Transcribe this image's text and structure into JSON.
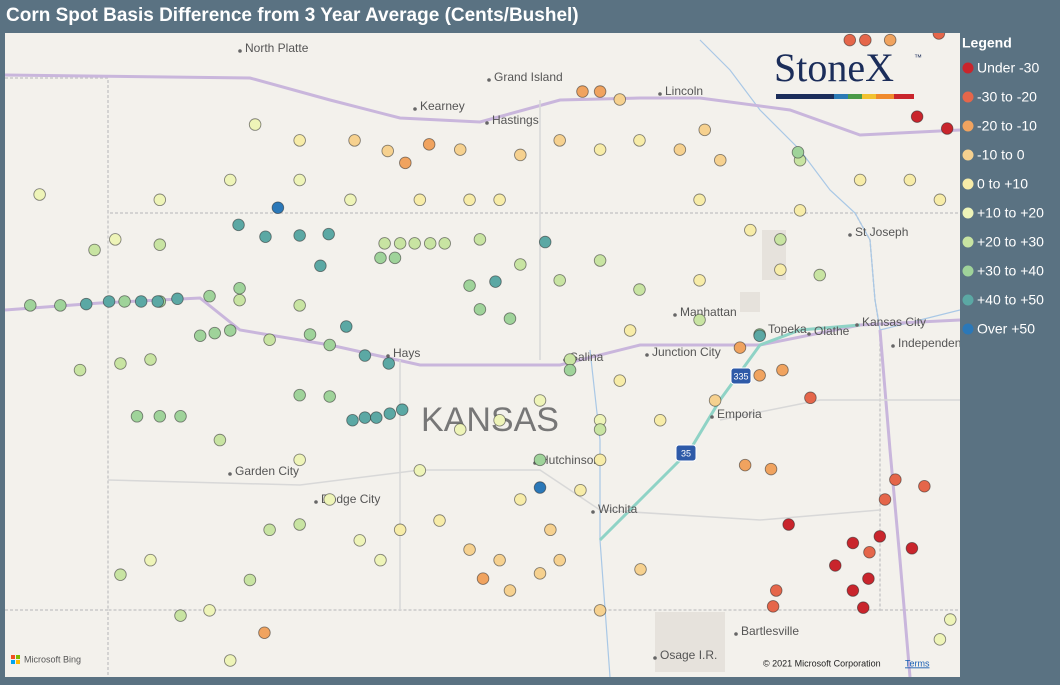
{
  "header": {
    "title": "Corn Spot Basis Difference from 3 Year Average (Cents/Bushel)"
  },
  "legend": {
    "title": "Legend",
    "items": [
      {
        "label": "Under -30",
        "color": "#c9252c",
        "points": [
          [
            -94.86,
            37.14
          ],
          [
            -94.76,
            37.01
          ],
          [
            -95.03,
            37.33
          ],
          [
            -94.71,
            37.23
          ],
          [
            -94.29,
            37.46
          ],
          [
            -94.24,
            40.73
          ],
          [
            -93.95,
            40.64
          ],
          [
            -95.48,
            37.64
          ],
          [
            -94.86,
            37.5
          ],
          [
            -94.6,
            37.55
          ]
        ]
      },
      {
        "label": "-30 to -20",
        "color": "#e5664a",
        "points": [
          [
            -94.55,
            37.83
          ],
          [
            -94.45,
            37.98
          ],
          [
            -94.17,
            37.93
          ],
          [
            -94.7,
            37.43
          ],
          [
            -95.63,
            37.02
          ],
          [
            -95.6,
            37.14
          ],
          [
            -95.27,
            38.6
          ],
          [
            -94.89,
            41.31
          ],
          [
            -94.74,
            41.31
          ],
          [
            -94.03,
            41.36
          ]
        ]
      },
      {
        "label": "-20 to -10",
        "color": "#f0a35f",
        "points": [
          [
            -99.18,
            40.38
          ],
          [
            -98.95,
            40.52
          ],
          [
            -100.54,
            36.82
          ],
          [
            -97.47,
            40.92
          ],
          [
            -97.3,
            40.92
          ],
          [
            -95.95,
            38.98
          ],
          [
            -95.76,
            38.77
          ],
          [
            -95.54,
            38.81
          ],
          [
            -95.9,
            38.09
          ],
          [
            -95.65,
            38.06
          ],
          [
            -94.5,
            41.31
          ],
          [
            -98.43,
            37.23
          ]
        ]
      },
      {
        "label": "-10 to 0",
        "color": "#f6d18f",
        "points": [
          [
            -99.67,
            40.55
          ],
          [
            -99.35,
            40.47
          ],
          [
            -98.65,
            40.48
          ],
          [
            -98.07,
            40.44
          ],
          [
            -97.69,
            40.55
          ],
          [
            -97.11,
            40.86
          ],
          [
            -96.53,
            40.48
          ],
          [
            -96.29,
            40.63
          ],
          [
            -96.14,
            40.4
          ],
          [
            -98.56,
            37.45
          ],
          [
            -98.27,
            37.37
          ],
          [
            -97.88,
            37.27
          ],
          [
            -97.69,
            37.37
          ],
          [
            -96.91,
            37.3
          ],
          [
            -97.3,
            36.99
          ],
          [
            -97.78,
            37.6
          ],
          [
            -98.17,
            37.14
          ],
          [
            -96.19,
            38.58
          ]
        ]
      },
      {
        "label": "0 to +10",
        "color": "#f7eca8",
        "points": [
          [
            -100.2,
            40.55
          ],
          [
            -99.04,
            40.1
          ],
          [
            -98.56,
            40.1
          ],
          [
            -98.27,
            40.1
          ],
          [
            -97.3,
            40.48
          ],
          [
            -96.92,
            40.55
          ],
          [
            -96.34,
            40.1
          ],
          [
            -95.85,
            39.87
          ],
          [
            -95.37,
            40.02
          ],
          [
            -94.79,
            40.25
          ],
          [
            -94.31,
            40.25
          ],
          [
            -94.02,
            40.1
          ],
          [
            -97.01,
            39.11
          ],
          [
            -97.11,
            38.73
          ],
          [
            -96.72,
            38.43
          ],
          [
            -97.3,
            38.13
          ],
          [
            -97.49,
            37.9
          ],
          [
            -98.07,
            37.83
          ],
          [
            -98.85,
            37.67
          ],
          [
            -99.23,
            37.6
          ],
          [
            -96.34,
            39.49
          ],
          [
            -95.56,
            39.57
          ]
        ]
      },
      {
        "label": "+10 to +20",
        "color": "#eef4b8",
        "points": [
          [
            -100.63,
            40.67
          ],
          [
            -100.2,
            40.25
          ],
          [
            -99.71,
            40.1
          ],
          [
            -100.87,
            40.25
          ],
          [
            -101.55,
            40.1
          ],
          [
            -102.71,
            40.14
          ],
          [
            -101.98,
            39.8
          ],
          [
            -100.2,
            38.13
          ],
          [
            -99.91,
            37.83
          ],
          [
            -99.62,
            37.52
          ],
          [
            -99.42,
            37.37
          ],
          [
            -99.04,
            38.05
          ],
          [
            -98.65,
            38.36
          ],
          [
            -98.27,
            38.43
          ],
          [
            -97.88,
            38.58
          ],
          [
            -97.3,
            38.43
          ],
          [
            -101.64,
            37.37
          ],
          [
            -101.07,
            36.99
          ],
          [
            -100.87,
            36.61
          ],
          [
            -93.92,
            36.92
          ],
          [
            -94.02,
            36.77
          ]
        ]
      },
      {
        "label": "+20 to +30",
        "color": "#c8e4a2",
        "points": [
          [
            -99.38,
            39.77
          ],
          [
            -99.23,
            39.77
          ],
          [
            -99.09,
            39.77
          ],
          [
            -98.94,
            39.77
          ],
          [
            -98.8,
            39.77
          ],
          [
            -98.46,
            39.8
          ],
          [
            -98.07,
            39.61
          ],
          [
            -97.69,
            39.49
          ],
          [
            -97.3,
            39.64
          ],
          [
            -96.92,
            39.42
          ],
          [
            -96.34,
            39.19
          ],
          [
            -95.18,
            39.53
          ],
          [
            -95.56,
            39.8
          ],
          [
            -101.55,
            39.76
          ],
          [
            -102.18,
            39.72
          ],
          [
            -100.2,
            39.3
          ],
          [
            -100.78,
            39.34
          ],
          [
            -102.32,
            38.81
          ],
          [
            -101.93,
            38.86
          ],
          [
            -101.64,
            38.89
          ],
          [
            -100.49,
            39.04
          ],
          [
            -100.97,
            38.28
          ],
          [
            -100.49,
            37.6
          ],
          [
            -100.2,
            37.64
          ],
          [
            -100.68,
            37.22
          ],
          [
            -101.35,
            36.95
          ],
          [
            -101.93,
            37.26
          ],
          [
            -97.3,
            38.36
          ],
          [
            -97.59,
            38.89
          ],
          [
            -95.37,
            40.4
          ]
        ]
      },
      {
        "label": "+30 to +40",
        "color": "#9fd39a",
        "points": [
          [
            -102.8,
            39.3
          ],
          [
            -102.51,
            39.3
          ],
          [
            -101.89,
            39.33
          ],
          [
            -101.55,
            39.33
          ],
          [
            -101.07,
            39.37
          ],
          [
            -100.78,
            39.43
          ],
          [
            -101.16,
            39.07
          ],
          [
            -101.02,
            39.09
          ],
          [
            -100.87,
            39.11
          ],
          [
            -99.91,
            39.0
          ],
          [
            -100.1,
            39.08
          ],
          [
            -99.28,
            39.66
          ],
          [
            -99.42,
            39.66
          ],
          [
            -100.2,
            38.62
          ],
          [
            -99.91,
            38.61
          ],
          [
            -101.77,
            38.46
          ],
          [
            -101.55,
            38.46
          ],
          [
            -101.35,
            38.46
          ],
          [
            -98.56,
            39.45
          ],
          [
            -98.46,
            39.27
          ],
          [
            -98.17,
            39.2
          ],
          [
            -95.39,
            40.46
          ],
          [
            -95.76,
            39.08
          ],
          [
            -97.59,
            38.81
          ],
          [
            -97.88,
            38.13
          ]
        ]
      },
      {
        "label": "+40 to +50",
        "color": "#5ba8a4",
        "points": [
          [
            -102.26,
            39.31
          ],
          [
            -102.04,
            39.33
          ],
          [
            -101.73,
            39.33
          ],
          [
            -101.57,
            39.33
          ],
          [
            -101.38,
            39.35
          ],
          [
            -100.79,
            39.91
          ],
          [
            -100.53,
            39.82
          ],
          [
            -100.2,
            39.83
          ],
          [
            -99.92,
            39.84
          ],
          [
            -100.0,
            39.6
          ],
          [
            -99.75,
            39.14
          ],
          [
            -99.57,
            38.92
          ],
          [
            -99.34,
            38.86
          ],
          [
            -99.69,
            38.43
          ],
          [
            -99.57,
            38.45
          ],
          [
            -99.46,
            38.45
          ],
          [
            -99.33,
            38.48
          ],
          [
            -99.21,
            38.51
          ],
          [
            -98.31,
            39.48
          ],
          [
            -97.83,
            39.78
          ],
          [
            -95.76,
            39.07
          ]
        ]
      },
      {
        "label": "Over +50",
        "color": "#2b78b8",
        "points": [
          [
            -97.88,
            37.92
          ],
          [
            -100.41,
            40.04
          ]
        ]
      }
    ]
  },
  "map": {
    "region_label": "KANSAS",
    "places": [
      "North Platte",
      "Grand Island",
      "Kearney",
      "Hastings",
      "Lincoln",
      "St Joseph",
      "Manhattan",
      "Topeka",
      "Kansas City",
      "Independence",
      "Olathe",
      "Junction City",
      "Salina",
      "Hays",
      "Emporia",
      "Hutchinson",
      "Wichita",
      "Garden City",
      "Dodge City",
      "Bartlesville",
      "Osage I.R."
    ],
    "shields": [
      "335",
      "35"
    ],
    "logo": "StoneX",
    "trademark": "™",
    "provider": "Microsoft Bing",
    "copyright": "© 2021 Microsoft Corporation",
    "terms": "Terms"
  }
}
